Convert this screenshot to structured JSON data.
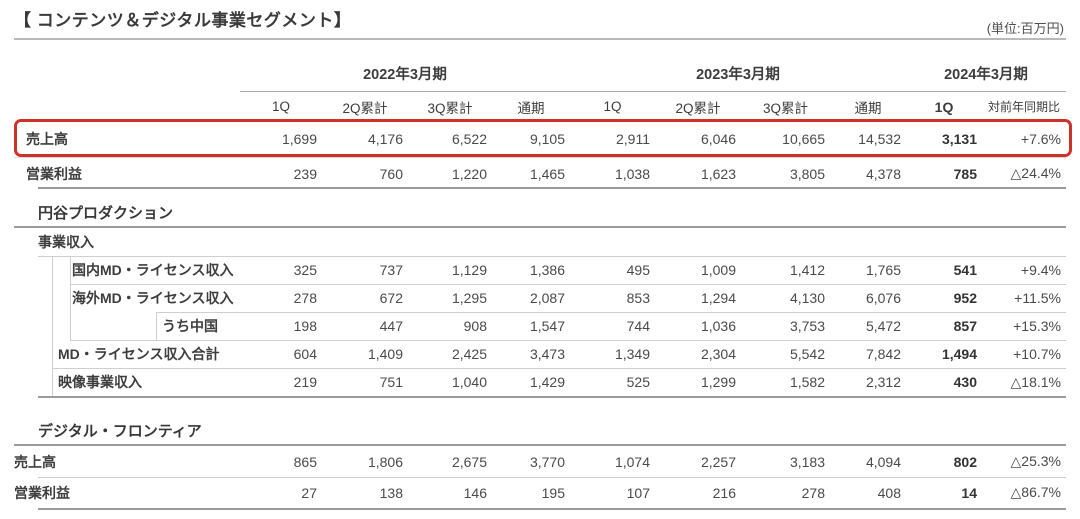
{
  "header": {
    "title": "【 コンテンツ＆デジタル事業セグメント】",
    "unit_label": "(単位:百万円)"
  },
  "columns": {
    "year_headers": [
      "2022年3月期",
      "2023年3月期",
      "2024年3月期"
    ],
    "quarter_header": {
      "values": [
        "1Q",
        "2Q累計",
        "3Q累計",
        "通期",
        "1Q",
        "2Q累計",
        "3Q累計",
        "通期",
        "1Q",
        "対前年同期比"
      ]
    }
  },
  "summary": {
    "rows": [
      {
        "label": "売上高",
        "highlighted": true,
        "values": [
          "1,699",
          "4,176",
          "6,522",
          "9,105",
          "2,911",
          "6,046",
          "10,665",
          "14,532",
          "3,131",
          "+7.6%"
        ]
      },
      {
        "label": "営業利益",
        "values": [
          "239",
          "760",
          "1,220",
          "1,465",
          "1,038",
          "1,623",
          "3,805",
          "4,378",
          "785",
          "△24.4%"
        ]
      }
    ]
  },
  "sections": [
    {
      "heading": "円谷プロダクション",
      "rows": [
        {
          "label": "事業収入",
          "values": []
        },
        {
          "label": "国内MD・ライセンス収入",
          "values": [
            "325",
            "737",
            "1,129",
            "1,386",
            "495",
            "1,009",
            "1,412",
            "1,765",
            "541",
            "+9.4%"
          ]
        },
        {
          "label": "海外MD・ライセンス収入",
          "values": [
            "278",
            "672",
            "1,295",
            "2,087",
            "853",
            "1,294",
            "4,130",
            "6,076",
            "952",
            "+11.5%"
          ]
        },
        {
          "label": "うち中国",
          "values": [
            "198",
            "447",
            "908",
            "1,547",
            "744",
            "1,036",
            "3,753",
            "5,472",
            "857",
            "+15.3%"
          ]
        },
        {
          "label": "MD・ライセンス収入合計",
          "values": [
            "604",
            "1,409",
            "2,425",
            "3,473",
            "1,349",
            "2,304",
            "5,542",
            "7,842",
            "1,494",
            "+10.7%"
          ]
        },
        {
          "label": "映像事業収入",
          "values": [
            "219",
            "751",
            "1,040",
            "1,429",
            "525",
            "1,299",
            "1,582",
            "2,312",
            "430",
            "△18.1%"
          ]
        }
      ]
    },
    {
      "heading": "デジタル・フロンティア",
      "rows": [
        {
          "label": "売上高",
          "values": [
            "865",
            "1,806",
            "2,675",
            "3,770",
            "1,074",
            "2,257",
            "3,183",
            "4,094",
            "802",
            "△25.3%"
          ]
        },
        {
          "label": "営業利益",
          "values": [
            "27",
            "138",
            "146",
            "195",
            "107",
            "216",
            "278",
            "408",
            "14",
            "△86.7%"
          ]
        }
      ]
    }
  ],
  "colors": {
    "highlight_red": "#cd3228",
    "text": "#3d3d3d",
    "border_light": "#cfcfcf",
    "border_heavy": "#9b9b9b"
  }
}
